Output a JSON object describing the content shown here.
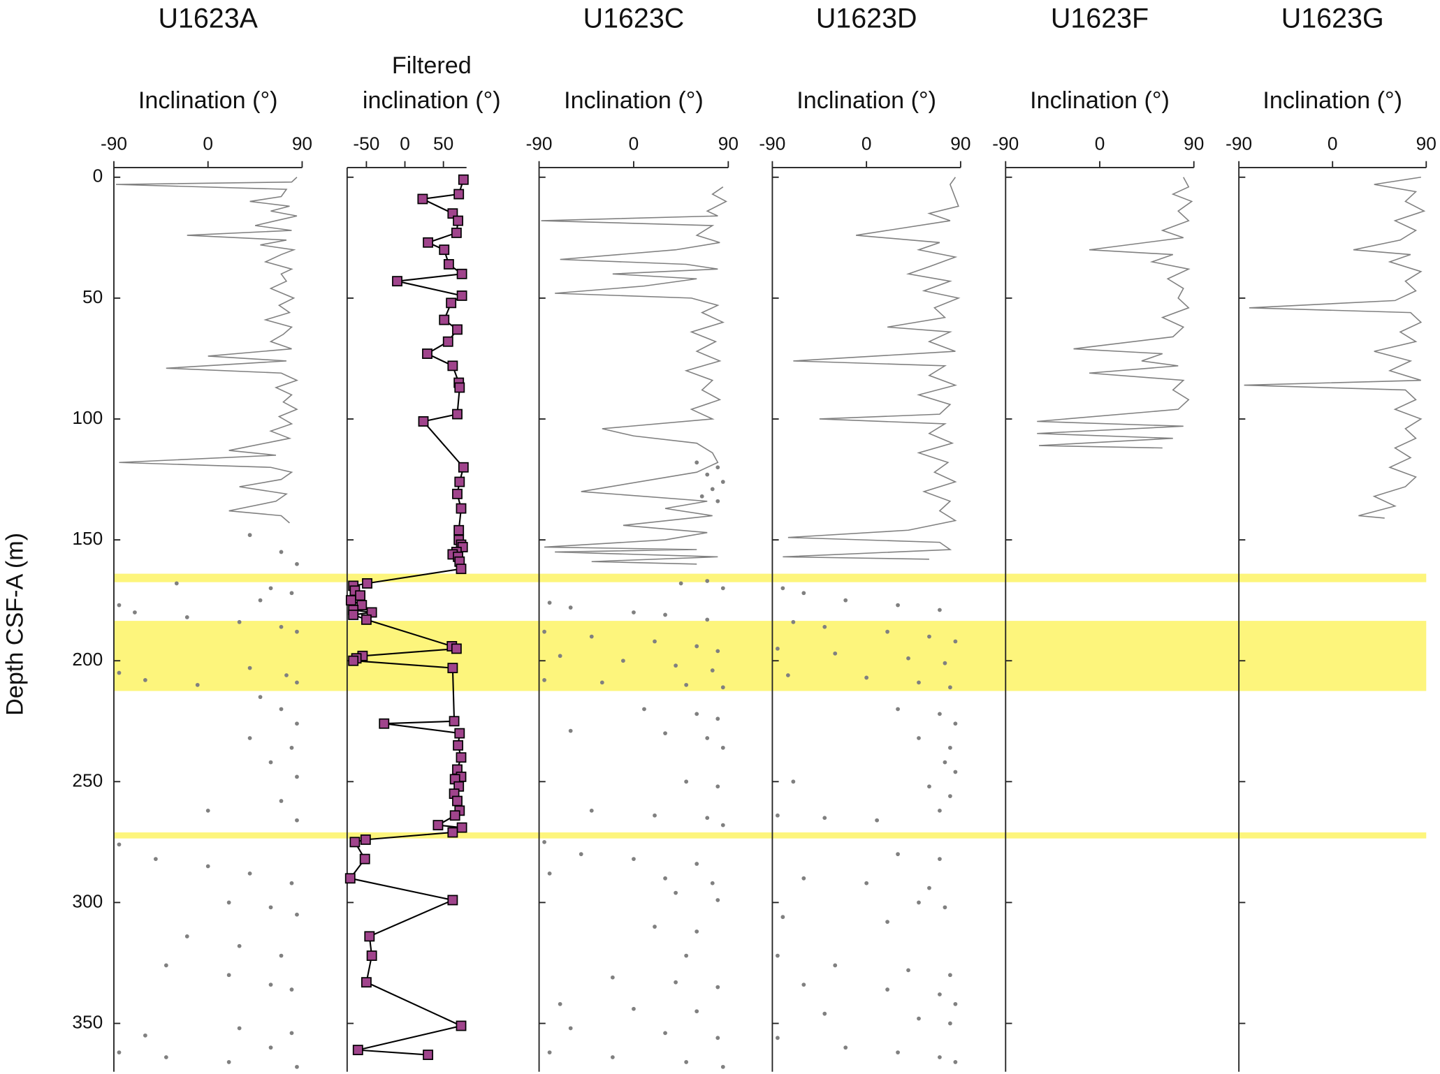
{
  "highlight_bands": {
    "color": "#fdf57c",
    "ranges": [
      [
        164,
        167.5
      ],
      [
        183.5,
        212.5
      ],
      [
        271,
        273.5
      ]
    ]
  },
  "chart_data": [
    {
      "type": "mixed",
      "title": "U1623A",
      "xlabel": "Inclination (°)",
      "ylabel": "Depth CSF-A (m)",
      "xlim": [
        -90,
        90
      ],
      "xticks": [
        -90,
        0,
        90
      ],
      "ylim": [
        -4,
        370
      ],
      "yticks": [
        0,
        50,
        100,
        150,
        200,
        250,
        300,
        350
      ],
      "series": [
        {
          "type": "line",
          "color": "#808080",
          "x": [
            85,
            80,
            -88,
            75,
            70,
            40,
            78,
            60,
            85,
            65,
            45,
            80,
            -20,
            75,
            50,
            82,
            70,
            55,
            80,
            70,
            75,
            60,
            82,
            68,
            78,
            55,
            80,
            72,
            60,
            80,
            0,
            75,
            -40,
            70,
            85,
            65,
            80,
            72,
            85,
            68,
            80,
            60,
            78,
            20,
            65,
            -85,
            60,
            80,
            70,
            30,
            75,
            65,
            20,
            70,
            78
          ],
          "y": [
            0,
            2,
            3,
            5,
            8,
            10,
            12,
            14,
            16,
            18,
            20,
            22,
            24,
            26,
            28,
            30,
            32,
            35,
            38,
            40,
            43,
            46,
            50,
            53,
            56,
            59,
            62,
            65,
            68,
            71,
            74,
            76,
            79,
            81,
            84,
            87,
            90,
            93,
            96,
            99,
            102,
            105,
            108,
            113,
            115,
            118,
            120,
            122,
            125,
            128,
            131,
            134,
            138,
            140,
            143
          ]
        },
        {
          "type": "scatter",
          "color": "#808080",
          "x": [
            40,
            70,
            85,
            -30,
            60,
            80,
            50,
            -85,
            -70,
            -20,
            30,
            70,
            85,
            -85,
            -60,
            -10,
            40,
            75,
            85,
            50,
            70,
            85,
            40,
            80,
            60,
            85,
            0,
            70,
            85,
            -85,
            -50,
            0,
            40,
            80,
            20,
            60,
            85,
            -20,
            30,
            70,
            -40,
            20,
            60,
            80,
            -60,
            30,
            80,
            -85,
            -40,
            20,
            60,
            85
          ],
          "y": [
            148,
            155,
            160,
            168,
            170,
            172,
            175,
            177,
            180,
            182,
            184,
            186,
            188,
            205,
            208,
            210,
            203,
            206,
            209,
            215,
            220,
            226,
            232,
            236,
            242,
            248,
            262,
            258,
            266,
            276,
            282,
            285,
            288,
            292,
            300,
            302,
            305,
            314,
            318,
            322,
            326,
            330,
            334,
            336,
            355,
            352,
            354,
            362,
            364,
            366,
            360,
            368
          ]
        }
      ]
    },
    {
      "type": "line",
      "xlabel": [
        "Filtered",
        "inclination (°)"
      ],
      "xlim": [
        -75,
        80
      ],
      "xticks": [
        -50,
        0,
        50
      ],
      "ylim": [
        -4,
        370
      ],
      "yticks": [
        0,
        50,
        100,
        150,
        200,
        250,
        300,
        350
      ],
      "series": [
        {
          "type": "line",
          "color": "#a0448c",
          "marker": "square",
          "line_color": "#000000",
          "x": [
            76,
            70,
            23,
            62,
            69,
            67,
            30,
            51,
            57,
            74,
            -10,
            74,
            60,
            51,
            68,
            56,
            29,
            62,
            70,
            71,
            68,
            24,
            76,
            71,
            68,
            73,
            70,
            70,
            73,
            75,
            67,
            62,
            69,
            71,
            73,
            -49,
            -67,
            -65,
            -58,
            -70,
            -56,
            -67,
            -43,
            -67,
            -50,
            61,
            67,
            -55,
            -63,
            -67,
            62,
            64,
            -27,
            71,
            69,
            73,
            68,
            73,
            65,
            70,
            64,
            68,
            71,
            65,
            43,
            74,
            62,
            -51,
            -65,
            -52,
            -71,
            62,
            -46,
            -43,
            -50,
            73,
            -61,
            30
          ],
          "y": [
            1,
            7,
            9,
            15,
            18,
            23,
            27,
            30,
            36,
            40,
            43,
            49,
            52,
            59,
            63,
            68,
            73,
            78,
            85,
            87,
            98,
            101,
            120,
            126,
            131,
            137,
            146,
            150,
            152,
            153,
            155,
            156,
            157,
            159,
            162,
            168,
            169,
            171,
            173,
            175,
            177,
            179,
            180,
            181,
            183,
            194,
            195,
            198,
            199,
            200,
            203,
            225,
            226,
            230,
            235,
            240,
            245,
            248,
            249,
            252,
            255,
            258,
            262,
            264,
            268,
            269,
            271,
            274,
            275,
            282,
            290,
            299,
            314,
            322,
            333,
            351,
            361,
            363
          ]
        }
      ]
    },
    {
      "type": "mixed",
      "title": "U1623C",
      "xlabel": "Inclination (°)",
      "xlim": [
        -90,
        90
      ],
      "xticks": [
        -90,
        0,
        90
      ],
      "ylim": [
        -4,
        370
      ],
      "yticks": [
        0,
        50,
        100,
        150,
        200,
        250,
        300,
        350
      ],
      "series": [
        {
          "type": "line",
          "color": "#808080",
          "x": [
            85,
            75,
            88,
            70,
            80,
            -88,
            75,
            60,
            82,
            40,
            -70,
            50,
            80,
            -20,
            60,
            10,
            -75,
            55,
            80,
            65,
            85,
            55,
            78,
            60,
            82,
            50,
            75,
            65,
            82,
            55,
            75,
            -30,
            0,
            60,
            75,
            80,
            60,
            -50,
            70,
            30,
            75,
            -10,
            70,
            30,
            -85,
            60,
            -75,
            80,
            -40,
            60
          ],
          "y": [
            4,
            7,
            10,
            14,
            16,
            18,
            20,
            24,
            27,
            30,
            34,
            36,
            38,
            40,
            42,
            45,
            48,
            50,
            53,
            56,
            60,
            64,
            68,
            72,
            76,
            80,
            84,
            88,
            92,
            96,
            100,
            104,
            107,
            110,
            114,
            118,
            122,
            130,
            134,
            137,
            140,
            144,
            147,
            150,
            153,
            154,
            155,
            157,
            159,
            160
          ]
        },
        {
          "type": "scatter",
          "color": "#808080",
          "x": [
            60,
            80,
            70,
            85,
            75,
            65,
            80,
            70,
            45,
            85,
            -80,
            -60,
            0,
            30,
            70,
            -85,
            -40,
            20,
            60,
            80,
            -70,
            -10,
            40,
            75,
            -85,
            -30,
            50,
            85,
            10,
            60,
            80,
            -60,
            30,
            70,
            85,
            50,
            80,
            -40,
            20,
            70,
            85,
            -85,
            -50,
            0,
            60,
            -80,
            30,
            75,
            40,
            80,
            20,
            60,
            50,
            -20,
            40,
            80,
            -70,
            0,
            60,
            -60,
            30,
            80,
            -80,
            -20,
            50,
            85
          ],
          "y": [
            118,
            120,
            123,
            126,
            129,
            132,
            134,
            167,
            168,
            170,
            176,
            178,
            180,
            181,
            183,
            188,
            190,
            192,
            194,
            196,
            198,
            200,
            202,
            204,
            208,
            209,
            210,
            211,
            220,
            222,
            224,
            229,
            230,
            232,
            236,
            250,
            252,
            262,
            264,
            265,
            268,
            275,
            280,
            282,
            284,
            288,
            290,
            292,
            296,
            299,
            310,
            312,
            322,
            331,
            333,
            335,
            342,
            344,
            345,
            352,
            354,
            356,
            362,
            364,
            366,
            368
          ]
        }
      ]
    },
    {
      "type": "mixed",
      "title": "U1623D",
      "xlabel": "Inclination (°)",
      "xlim": [
        -90,
        90
      ],
      "xticks": [
        -90,
        0,
        90
      ],
      "ylim": [
        -4,
        370
      ],
      "yticks": [
        0,
        50,
        100,
        150,
        200,
        250,
        300,
        350
      ],
      "series": [
        {
          "type": "line",
          "color": "#808080",
          "x": [
            85,
            80,
            88,
            60,
            80,
            -10,
            70,
            50,
            85,
            60,
            40,
            80,
            55,
            88,
            65,
            75,
            20,
            80,
            60,
            85,
            -70,
            75,
            60,
            85,
            50,
            80,
            70,
            -45,
            75,
            60,
            82,
            50,
            78,
            65,
            85,
            55,
            80,
            70,
            85,
            40,
            -75,
            70,
            80,
            -80,
            60
          ],
          "y": [
            0,
            3,
            12,
            15,
            18,
            24,
            27,
            30,
            33,
            37,
            40,
            43,
            47,
            50,
            54,
            58,
            62,
            64,
            68,
            72,
            76,
            78,
            82,
            86,
            90,
            94,
            98,
            100,
            102,
            106,
            110,
            114,
            118,
            122,
            126,
            130,
            134,
            138,
            142,
            146,
            149,
            151,
            154,
            157,
            158
          ]
        },
        {
          "type": "scatter",
          "color": "#808080",
          "x": [
            -80,
            -60,
            -20,
            30,
            70,
            -70,
            -40,
            20,
            60,
            85,
            -85,
            -30,
            40,
            75,
            -75,
            0,
            50,
            80,
            30,
            70,
            85,
            50,
            80,
            75,
            85,
            -70,
            60,
            80,
            -85,
            -40,
            10,
            70,
            30,
            70,
            -60,
            0,
            60,
            50,
            75,
            -80,
            20,
            -85,
            -30,
            40,
            80,
            -60,
            20,
            70,
            85,
            -40,
            50,
            80,
            -85,
            -20,
            30,
            70,
            85
          ],
          "y": [
            170,
            172,
            175,
            177,
            179,
            184,
            186,
            188,
            190,
            192,
            195,
            197,
            199,
            201,
            206,
            207,
            209,
            211,
            220,
            222,
            226,
            232,
            236,
            242,
            246,
            250,
            252,
            256,
            264,
            265,
            266,
            262,
            280,
            282,
            290,
            292,
            294,
            300,
            302,
            306,
            308,
            322,
            326,
            328,
            330,
            334,
            336,
            338,
            342,
            346,
            348,
            350,
            356,
            360,
            362,
            364,
            366
          ]
        }
      ]
    },
    {
      "type": "line",
      "title": "U1623F",
      "xlabel": "Inclination (°)",
      "xlim": [
        -90,
        90
      ],
      "xticks": [
        -90,
        0,
        90
      ],
      "ylim": [
        -4,
        370
      ],
      "yticks": [
        0,
        50,
        100,
        150,
        200,
        250,
        300,
        350
      ],
      "series": [
        {
          "type": "line",
          "color": "#808080",
          "x": [
            80,
            85,
            70,
            88,
            75,
            85,
            60,
            80,
            -10,
            70,
            50,
            85,
            65,
            80,
            75,
            85,
            60,
            80,
            70,
            -25,
            60,
            40,
            75,
            -10,
            80,
            70,
            85,
            75,
            -60,
            80,
            -60,
            70,
            -58,
            60
          ],
          "y": [
            0,
            4,
            7,
            10,
            14,
            18,
            22,
            25,
            30,
            32,
            35,
            38,
            42,
            46,
            50,
            54,
            58,
            62,
            66,
            71,
            73,
            76,
            78,
            81,
            84,
            88,
            92,
            96,
            101,
            103,
            106,
            108,
            111,
            112
          ]
        }
      ]
    },
    {
      "type": "line",
      "title": "U1623G",
      "xlabel": "Inclination (°)",
      "xlim": [
        -90,
        90
      ],
      "xticks": [
        -90,
        0,
        90
      ],
      "ylim": [
        -4,
        370
      ],
      "yticks": [
        0,
        50,
        100,
        150,
        200,
        250,
        300,
        350
      ],
      "series": [
        {
          "type": "line",
          "color": "#808080",
          "x": [
            85,
            40,
            80,
            70,
            88,
            60,
            80,
            65,
            20,
            75,
            55,
            85,
            70,
            80,
            60,
            -80,
            75,
            85,
            65,
            80,
            40,
            75,
            55,
            85,
            -85,
            70,
            80,
            60,
            85,
            70,
            80,
            60,
            75,
            55,
            80,
            70,
            40,
            60,
            25,
            50
          ],
          "y": [
            0,
            3,
            6,
            10,
            14,
            18,
            22,
            26,
            30,
            32,
            35,
            39,
            43,
            47,
            51,
            54,
            56,
            60,
            64,
            68,
            72,
            76,
            80,
            84,
            86,
            88,
            92,
            96,
            100,
            104,
            108,
            112,
            116,
            120,
            124,
            128,
            132,
            136,
            140,
            141
          ]
        }
      ]
    }
  ]
}
